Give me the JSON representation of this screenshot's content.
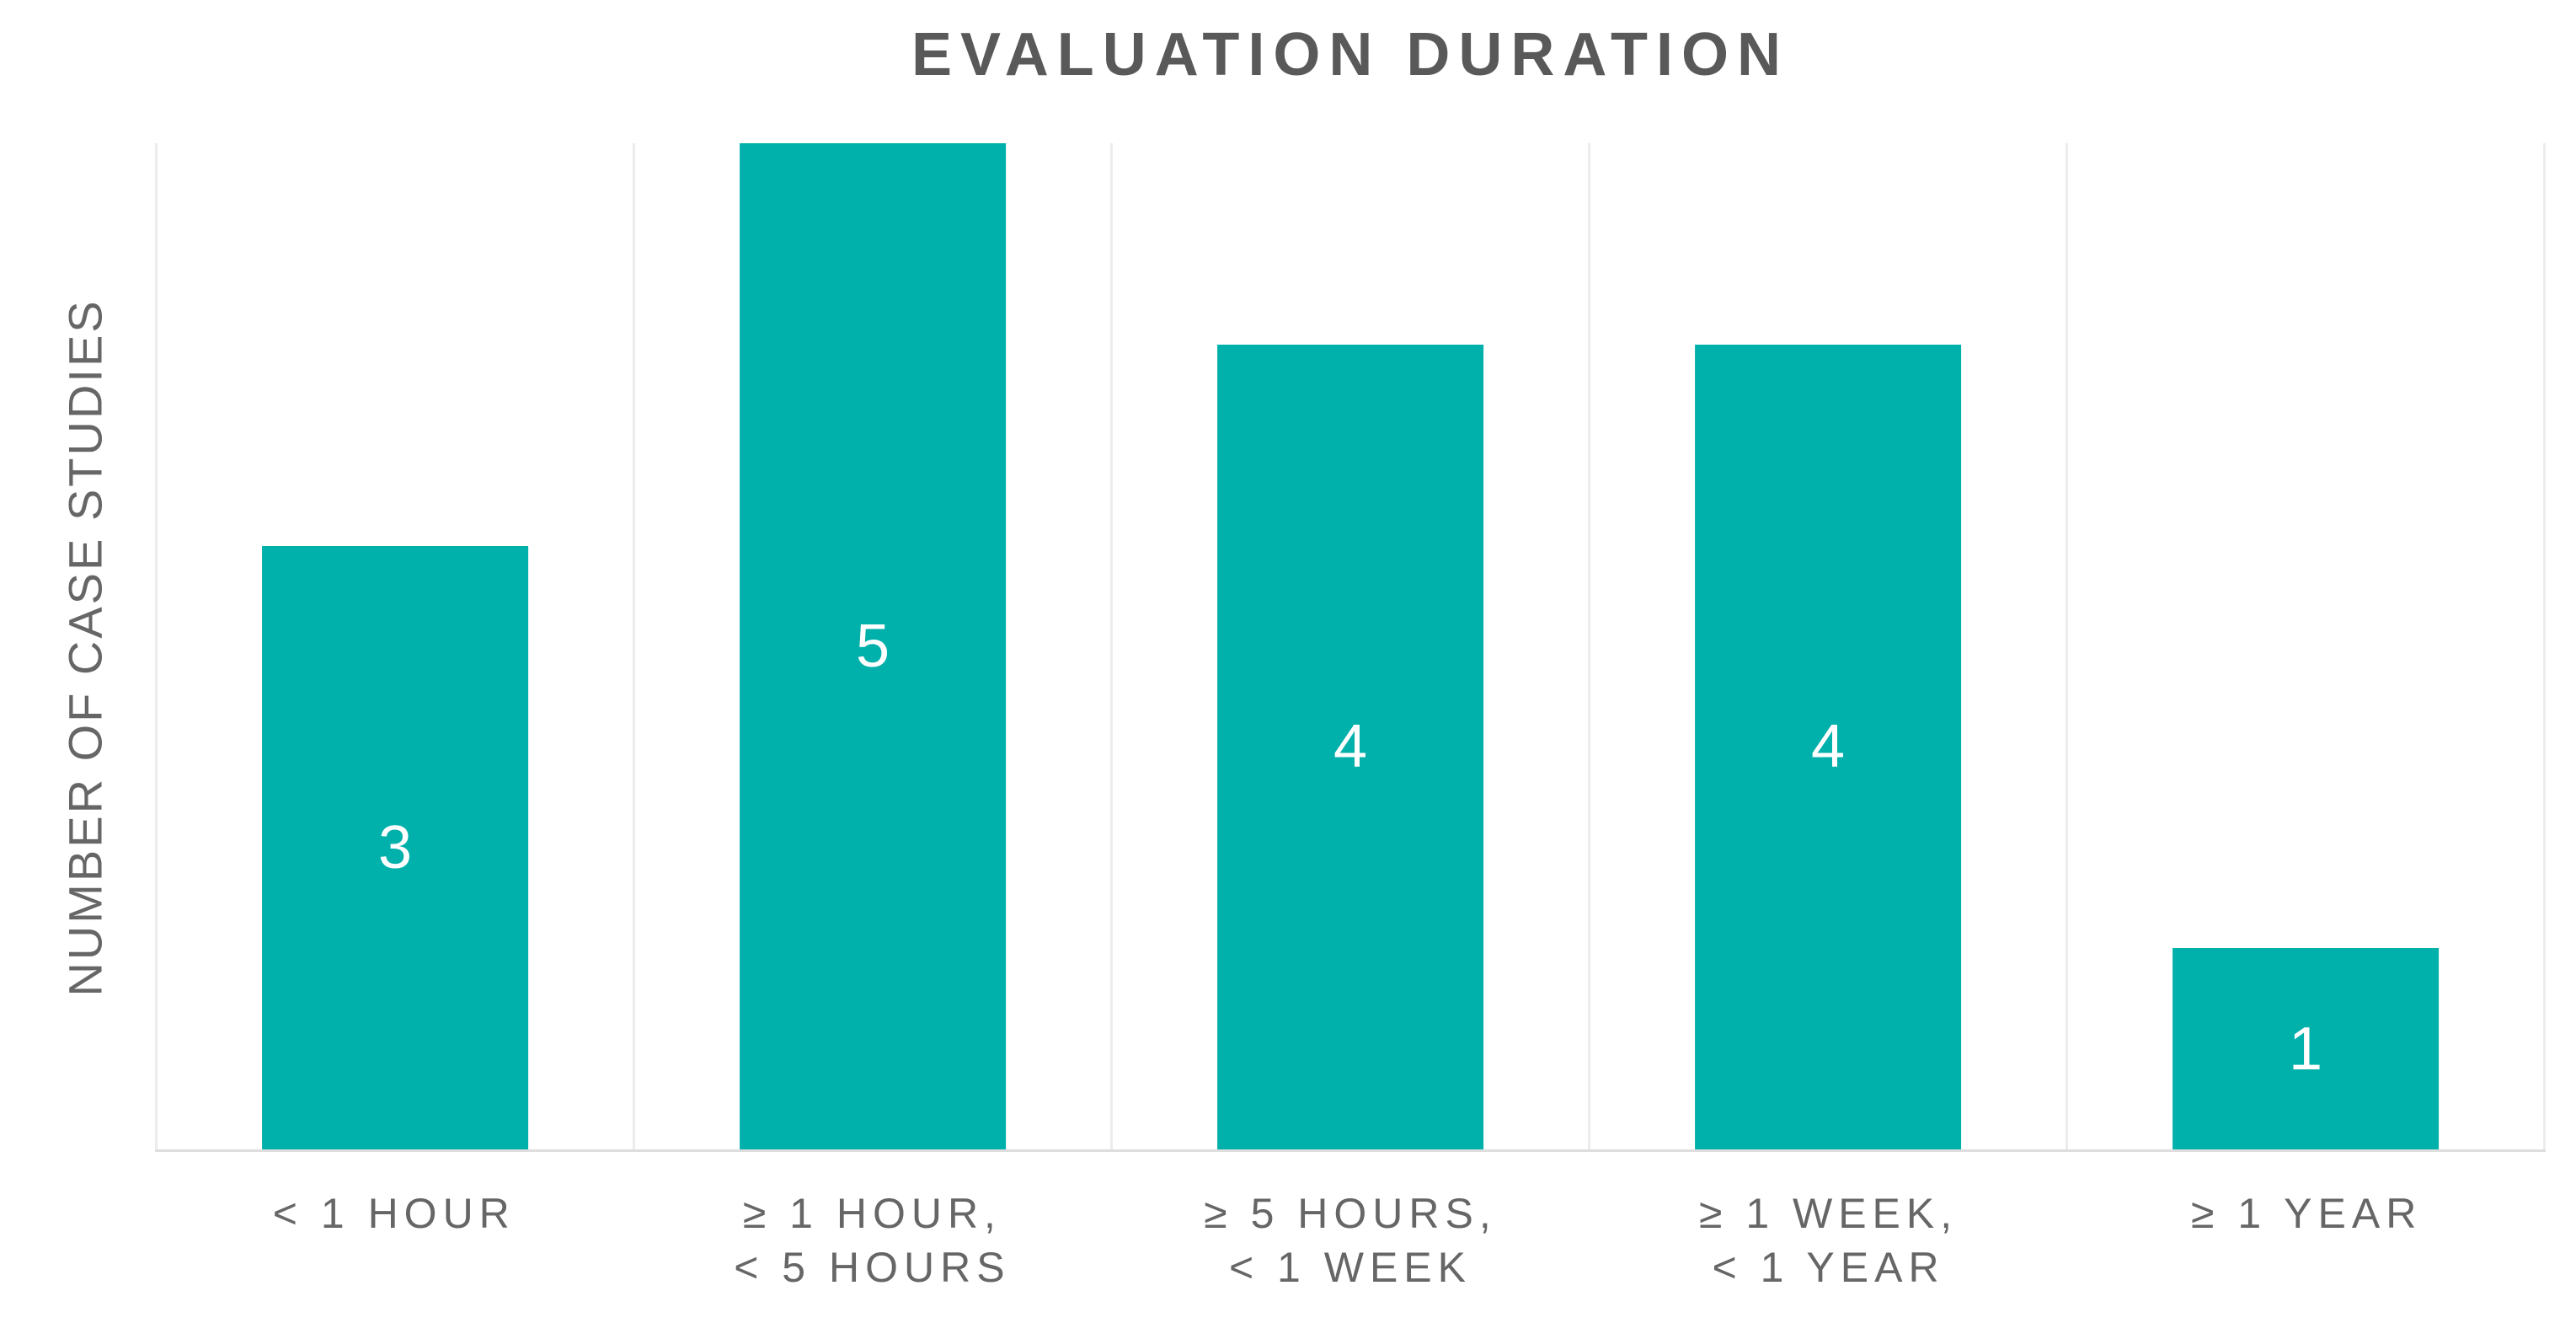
{
  "chart_data": {
    "type": "bar",
    "title": "EVALUATION DURATION",
    "ylabel": "NUMBER OF CASE STUDIES",
    "xlabel": "",
    "categories": [
      "< 1 HOUR",
      "≥ 1 HOUR, < 5 HOURS",
      "≥ 5 HOURS, < 1 WEEK",
      "≥ 1 WEEK, < 1 YEAR",
      "≥ 1 YEAR"
    ],
    "category_label_lines": [
      [
        "< 1 HOUR"
      ],
      [
        "≥ 1 HOUR,",
        "< 5 HOURS"
      ],
      [
        "≥ 5 HOURS,",
        "< 1 WEEK"
      ],
      [
        "≥ 1 WEEK,",
        "< 1 YEAR"
      ],
      [
        "≥ 1 YEAR"
      ]
    ],
    "values": [
      3,
      5,
      4,
      4,
      1
    ],
    "data_labels": [
      "3",
      "5",
      "4",
      "4",
      "1"
    ],
    "data_label_position": "center",
    "ylim": [
      0,
      5
    ],
    "legend": "none",
    "grid": "vertical-category-separators",
    "colors": {
      "bar_fill": "#00b0ab",
      "data_label": "#ffffff",
      "title_text": "#595959",
      "axis_text": "#666666",
      "gridline": "#ececec",
      "axis_line": "#dedede",
      "background": "#ffffff"
    }
  }
}
